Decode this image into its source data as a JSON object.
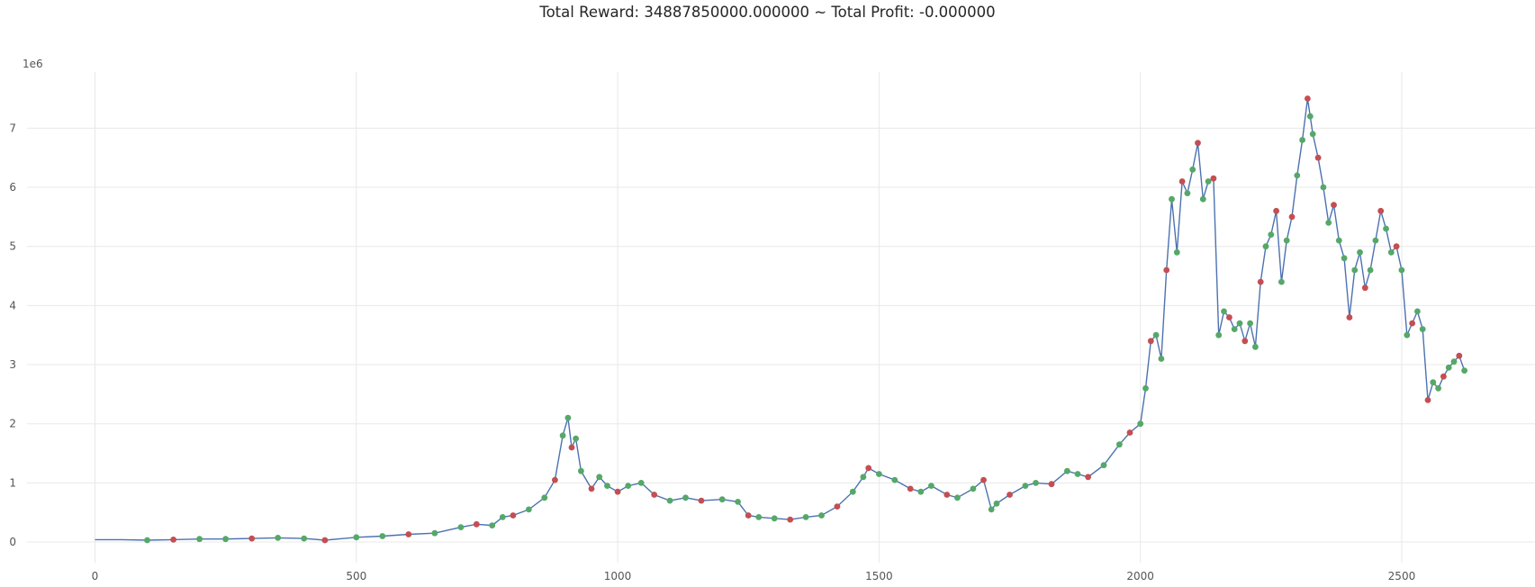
{
  "chart_data": {
    "type": "line",
    "title": "Total Reward: 34887850000.000000 ~ Total Profit: -0.000000",
    "xlabel": "",
    "ylabel": "",
    "y_offset_label": "1e6",
    "xlim": [
      -130,
      2755
    ],
    "ylim": [
      -0.35,
      7.95
    ],
    "x_ticks": [
      0,
      500,
      1000,
      1500,
      2000,
      2500
    ],
    "x_tick_labels": [
      "0",
      "500",
      "1000",
      "1500",
      "2000",
      "2500"
    ],
    "y_ticks": [
      0,
      1,
      2,
      3,
      4,
      5,
      6,
      7
    ],
    "y_tick_labels": [
      "0",
      "1",
      "2",
      "3",
      "4",
      "5",
      "6",
      "7"
    ],
    "grid": true,
    "colors": {
      "price_line": "#4c72b0",
      "short_marker": "#c44e52",
      "long_marker": "#55a868",
      "grid": "#e8e8e8",
      "tick_text": "#555555"
    },
    "series": [
      {
        "name": "",
        "x": [
          0,
          50,
          100,
          150,
          200,
          250,
          300,
          350,
          400,
          440,
          500,
          550,
          600,
          650,
          700,
          730,
          760,
          780,
          800,
          830,
          860,
          880,
          895,
          905,
          912,
          920,
          930,
          950,
          965,
          980,
          1000,
          1020,
          1045,
          1070,
          1100,
          1130,
          1160,
          1200,
          1230,
          1250,
          1270,
          1300,
          1330,
          1360,
          1390,
          1420,
          1450,
          1470,
          1480,
          1500,
          1530,
          1560,
          1580,
          1600,
          1630,
          1650,
          1680,
          1700,
          1715,
          1725,
          1750,
          1780,
          1800,
          1830,
          1860,
          1880,
          1900,
          1930,
          1960,
          1980,
          2000,
          2010,
          2020,
          2030,
          2040,
          2050,
          2060,
          2070,
          2080,
          2090,
          2100,
          2110,
          2120,
          2130,
          2140,
          2150,
          2160,
          2170,
          2180,
          2190,
          2200,
          2210,
          2220,
          2230,
          2240,
          2250,
          2260,
          2270,
          2280,
          2290,
          2300,
          2310,
          2320,
          2325,
          2330,
          2340,
          2350,
          2360,
          2370,
          2380,
          2390,
          2400,
          2410,
          2420,
          2430,
          2440,
          2450,
          2460,
          2470,
          2480,
          2490,
          2500,
          2510,
          2520,
          2530,
          2540,
          2550,
          2560,
          2570,
          2580,
          2590,
          2600,
          2610,
          2620
        ],
        "values": [
          0.04,
          0.04,
          0.03,
          0.04,
          0.05,
          0.05,
          0.06,
          0.07,
          0.06,
          0.03,
          0.08,
          0.1,
          0.13,
          0.15,
          0.25,
          0.3,
          0.28,
          0.42,
          0.45,
          0.55,
          0.75,
          1.05,
          1.8,
          2.1,
          1.6,
          1.75,
          1.2,
          0.9,
          1.1,
          0.95,
          0.85,
          0.95,
          1.0,
          0.8,
          0.7,
          0.75,
          0.7,
          0.72,
          0.68,
          0.45,
          0.42,
          0.4,
          0.38,
          0.42,
          0.45,
          0.6,
          0.85,
          1.1,
          1.25,
          1.15,
          1.05,
          0.9,
          0.85,
          0.95,
          0.8,
          0.75,
          0.9,
          1.05,
          0.55,
          0.65,
          0.8,
          0.95,
          1.0,
          0.98,
          1.2,
          1.15,
          1.1,
          1.3,
          1.65,
          1.85,
          2.0,
          2.6,
          3.4,
          3.5,
          3.1,
          4.6,
          5.8,
          4.9,
          6.1,
          5.9,
          6.3,
          6.75,
          5.8,
          6.1,
          6.15,
          3.5,
          3.9,
          3.8,
          3.6,
          3.7,
          3.4,
          3.7,
          3.3,
          4.4,
          5.0,
          5.2,
          5.6,
          4.4,
          5.1,
          5.5,
          6.2,
          6.8,
          7.5,
          7.2,
          6.9,
          6.5,
          6.0,
          5.4,
          5.7,
          5.1,
          4.8,
          3.8,
          4.6,
          4.9,
          4.3,
          4.6,
          5.1,
          5.6,
          5.3,
          4.9,
          5.0,
          4.6,
          3.5,
          3.7,
          3.9,
          3.6,
          2.4,
          2.7,
          2.6,
          2.8,
          2.95,
          3.05,
          3.15,
          2.9
        ]
      }
    ]
  }
}
